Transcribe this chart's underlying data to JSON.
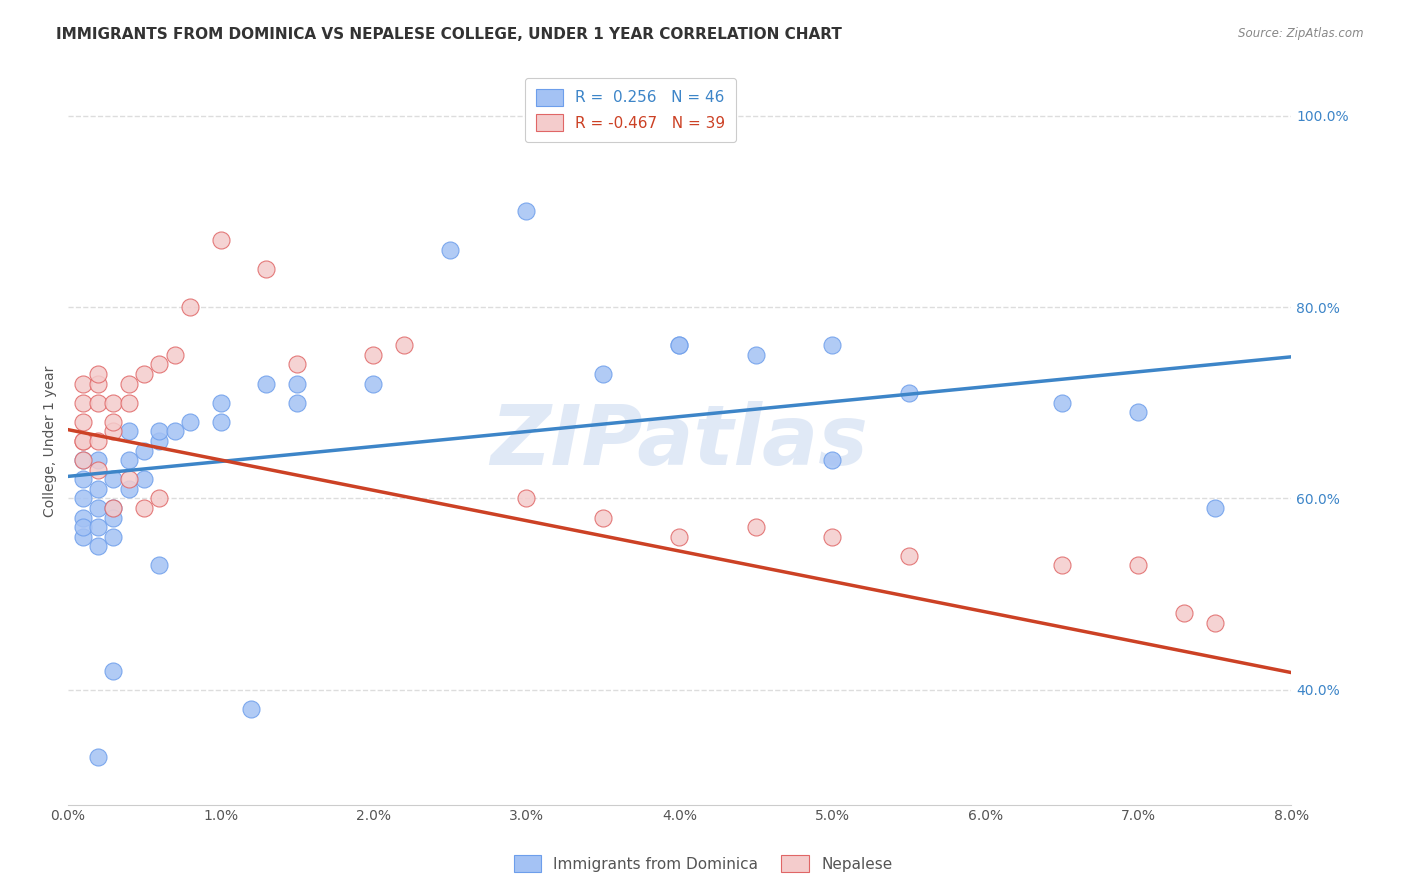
{
  "title": "IMMIGRANTS FROM DOMINICA VS NEPALESE COLLEGE, UNDER 1 YEAR CORRELATION CHART",
  "source": "Source: ZipAtlas.com",
  "ylabel": "College, Under 1 year",
  "xlim": [
    0.0,
    0.08
  ],
  "ylim": [
    0.28,
    1.04
  ],
  "xticks": [
    0.0,
    0.01,
    0.02,
    0.03,
    0.04,
    0.05,
    0.06,
    0.07,
    0.08
  ],
  "xticklabels": [
    "0.0%",
    "1.0%",
    "2.0%",
    "3.0%",
    "4.0%",
    "5.0%",
    "6.0%",
    "7.0%",
    "8.0%"
  ],
  "yticks": [
    0.4,
    0.6,
    0.8,
    1.0
  ],
  "yticklabels": [
    "40.0%",
    "60.0%",
    "80.0%",
    "100.0%"
  ],
  "blue_color": "#a4c2f4",
  "pink_color": "#f4cccc",
  "blue_edge_color": "#6d9eeb",
  "pink_edge_color": "#e06666",
  "blue_line_color": "#3d85c8",
  "pink_line_color": "#cc4125",
  "legend_r_blue": "R =  0.256",
  "legend_n_blue": "N = 46",
  "legend_r_pink": "R = -0.467",
  "legend_n_pink": "N = 39",
  "legend_label_blue": "Immigrants from Dominica",
  "legend_label_pink": "Nepalese",
  "blue_x": [
    0.001,
    0.001,
    0.001,
    0.001,
    0.001,
    0.001,
    0.002,
    0.002,
    0.002,
    0.002,
    0.002,
    0.003,
    0.003,
    0.003,
    0.003,
    0.004,
    0.004,
    0.004,
    0.005,
    0.005,
    0.006,
    0.006,
    0.007,
    0.008,
    0.01,
    0.01,
    0.013,
    0.015,
    0.015,
    0.02,
    0.025,
    0.03,
    0.035,
    0.04,
    0.04,
    0.045,
    0.05,
    0.05,
    0.055,
    0.065,
    0.07,
    0.075,
    0.003,
    0.002,
    0.006,
    0.012
  ],
  "blue_y": [
    0.62,
    0.6,
    0.58,
    0.64,
    0.56,
    0.57,
    0.59,
    0.61,
    0.64,
    0.55,
    0.57,
    0.59,
    0.62,
    0.56,
    0.58,
    0.61,
    0.64,
    0.67,
    0.62,
    0.65,
    0.66,
    0.67,
    0.67,
    0.68,
    0.7,
    0.68,
    0.72,
    0.7,
    0.72,
    0.72,
    0.86,
    0.9,
    0.73,
    0.76,
    0.76,
    0.75,
    0.76,
    0.64,
    0.71,
    0.7,
    0.69,
    0.59,
    0.42,
    0.33,
    0.53,
    0.38
  ],
  "pink_x": [
    0.001,
    0.001,
    0.001,
    0.001,
    0.001,
    0.001,
    0.002,
    0.002,
    0.002,
    0.002,
    0.003,
    0.003,
    0.003,
    0.004,
    0.004,
    0.005,
    0.006,
    0.007,
    0.008,
    0.01,
    0.013,
    0.015,
    0.02,
    0.022,
    0.03,
    0.035,
    0.04,
    0.045,
    0.05,
    0.055,
    0.065,
    0.07,
    0.073,
    0.075,
    0.005,
    0.003,
    0.002,
    0.006,
    0.004
  ],
  "pink_y": [
    0.68,
    0.7,
    0.66,
    0.72,
    0.64,
    0.66,
    0.7,
    0.72,
    0.66,
    0.73,
    0.67,
    0.7,
    0.68,
    0.72,
    0.7,
    0.73,
    0.74,
    0.75,
    0.8,
    0.87,
    0.84,
    0.74,
    0.75,
    0.76,
    0.6,
    0.58,
    0.56,
    0.57,
    0.56,
    0.54,
    0.53,
    0.53,
    0.48,
    0.47,
    0.59,
    0.59,
    0.63,
    0.6,
    0.62
  ],
  "watermark": "ZIPatlas",
  "grid_color": "#dddddd",
  "background_color": "#ffffff",
  "title_fontsize": 11,
  "axis_label_fontsize": 10,
  "tick_fontsize": 10,
  "blue_trendline_x0": 0.0,
  "blue_trendline_y0": 0.623,
  "blue_trendline_x1": 0.08,
  "blue_trendline_y1": 0.748,
  "pink_trendline_x0": 0.0,
  "pink_trendline_y0": 0.672,
  "pink_trendline_x1": 0.08,
  "pink_trendline_y1": 0.418
}
